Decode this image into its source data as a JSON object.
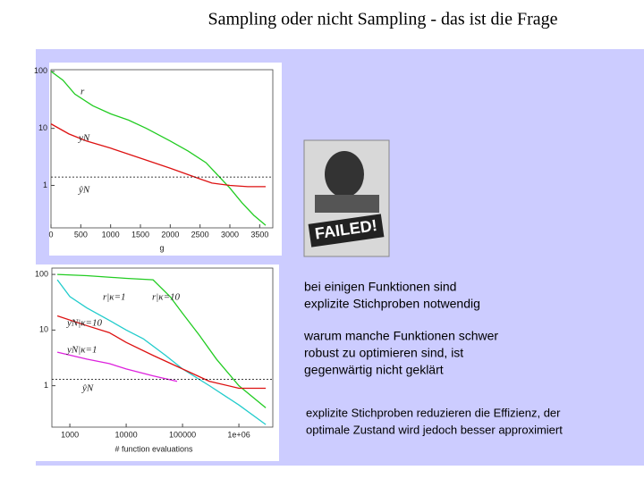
{
  "title": "Sampling oder nicht Sampling  - das ist die Frage",
  "picture_text": "FAILED!",
  "notes": [
    [
      "bei einigen Funktionen sind",
      "explizite Stichproben notwendig"
    ],
    [
      "warum manche Funktionen schwer",
      "robust zu optimieren sind, ist",
      "gegenwärtig nicht geklärt"
    ],
    [
      "explizite Stichproben reduzieren die Effizienz, der",
      "optimale Zustand wird jedoch besser approximiert"
    ]
  ],
  "chart_data": [
    {
      "type": "line",
      "xlabel": "g",
      "log_y": true,
      "log_x": false,
      "xlim": [
        0,
        3720
      ],
      "ylim": [
        0.18,
        107
      ],
      "xticks": [
        0,
        500,
        1000,
        1500,
        2000,
        2500,
        3000,
        3500
      ],
      "yticks": [
        1,
        10,
        100
      ],
      "series": [
        {
          "name": "r",
          "color": "#22cc22",
          "x": [
            0,
            200,
            400,
            700,
            1000,
            1300,
            1600,
            2000,
            2300,
            2600,
            2800,
            3000,
            3200,
            3400,
            3600
          ],
          "values": [
            100,
            70,
            40,
            25,
            18,
            14,
            10,
            6,
            4,
            2.5,
            1.5,
            0.9,
            0.5,
            0.3,
            0.2
          ]
        },
        {
          "name": "yN",
          "color": "#dd1111",
          "x": [
            0,
            300,
            600,
            1000,
            1500,
            2000,
            2500,
            2700,
            3000,
            3300,
            3600
          ],
          "values": [
            12,
            8,
            6,
            4.5,
            3,
            2,
            1.3,
            1.1,
            1.0,
            0.95,
            0.95
          ]
        },
        {
          "name": "ŷN",
          "color": "#000000",
          "dashed": true,
          "x": [
            0,
            3720
          ],
          "values": [
            1.4,
            1.4
          ]
        }
      ]
    },
    {
      "type": "line",
      "xlabel": "# function evaluations",
      "log_y": true,
      "log_x": true,
      "xlim": [
        480,
        4000000
      ],
      "ylim": [
        0.18,
        130
      ],
      "xticks": [
        1000,
        10000,
        100000,
        {
          "value": 1000000,
          "label": "1e+06"
        }
      ],
      "yticks": [
        1,
        10,
        100
      ],
      "series": [
        {
          "name": "r|κ=1",
          "color": "#22cccc",
          "x": [
            600,
            1000,
            2000,
            5000,
            10000,
            20000,
            50000,
            100000,
            300000,
            1000000,
            3000000
          ],
          "values": [
            80,
            40,
            25,
            15,
            10,
            7,
            3.5,
            2,
            1,
            0.45,
            0.2
          ]
        },
        {
          "name": "r|κ=10",
          "color": "#22cc22",
          "x": [
            600,
            2000,
            10000,
            30000,
            60000,
            100000,
            200000,
            400000,
            1000000,
            3000000
          ],
          "values": [
            100,
            95,
            85,
            80,
            40,
            20,
            8,
            3,
            1,
            0.4
          ]
        },
        {
          "name": "yN|κ=10",
          "color": "#dd1111",
          "x": [
            600,
            2000,
            5000,
            10000,
            30000,
            100000,
            300000,
            1000000,
            3000000
          ],
          "values": [
            18,
            12,
            9,
            6,
            3.5,
            2,
            1.2,
            0.9,
            0.9
          ]
        },
        {
          "name": "yN|κ=1",
          "color": "#dd22dd",
          "x": [
            600,
            2000,
            5000,
            10000,
            30000,
            80000
          ],
          "values": [
            4,
            3,
            2.5,
            2,
            1.5,
            1.2
          ]
        },
        {
          "name": "ŷN",
          "color": "#000000",
          "dashed": true,
          "x": [
            480,
            4000000
          ],
          "values": [
            1.3,
            1.3
          ]
        }
      ]
    }
  ]
}
